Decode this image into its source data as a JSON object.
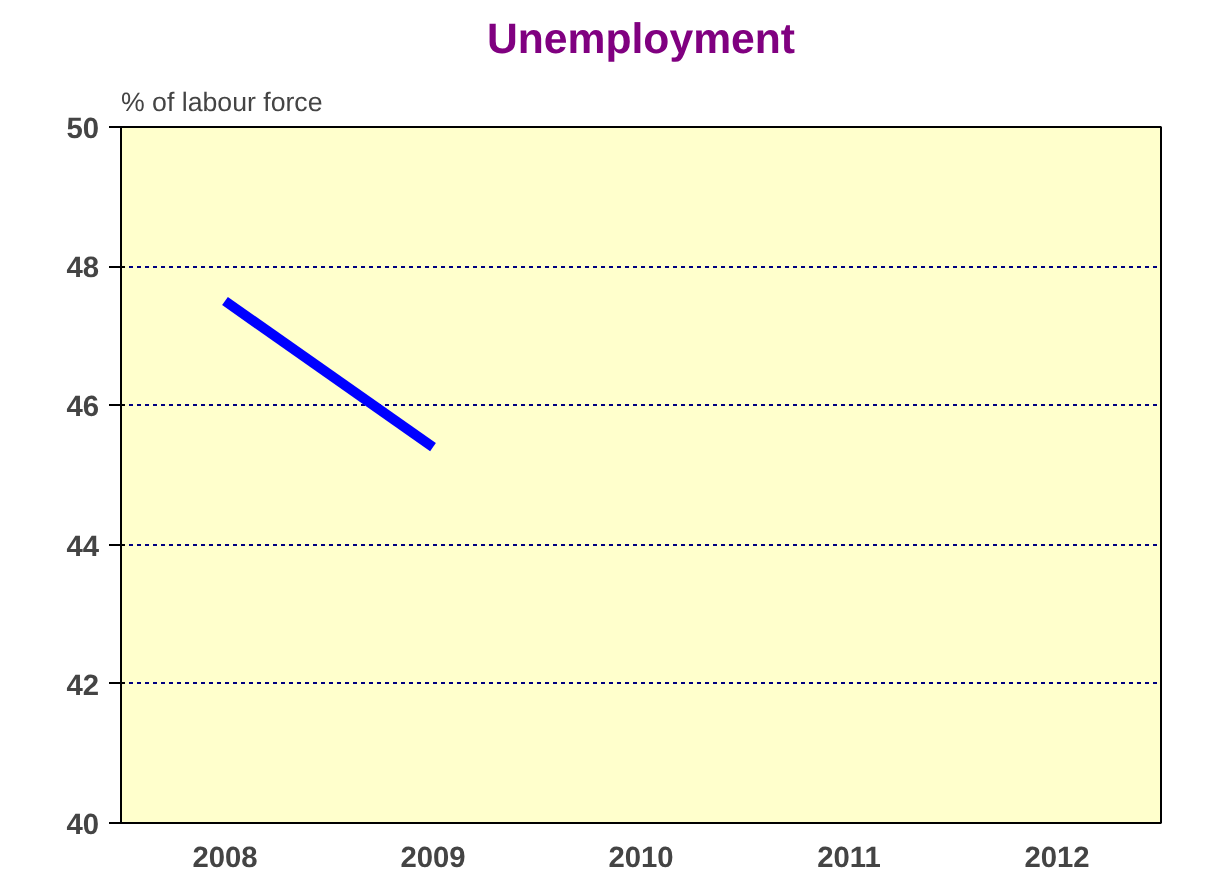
{
  "chart_data": {
    "type": "line",
    "title": "Unemployment",
    "ylabel": "% of labour force",
    "categories": [
      "2008",
      "2009",
      "2010",
      "2011",
      "2012"
    ],
    "series": [
      {
        "color": "#0000ff",
        "values": [
          47.5,
          45.4,
          null,
          null,
          null
        ]
      }
    ],
    "ylim": [
      40,
      50
    ],
    "yticks": [
      40,
      42,
      44,
      46,
      48,
      50
    ],
    "grid": "y",
    "line_style": "solid",
    "marker": "none"
  }
}
